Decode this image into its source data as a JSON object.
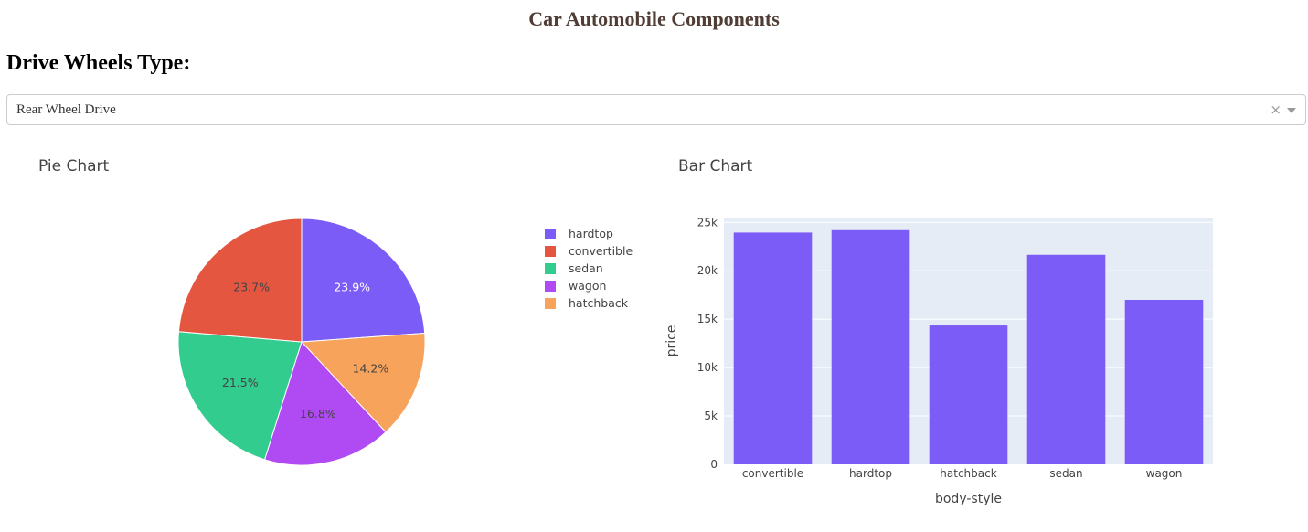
{
  "header": {
    "title": "Car Automobile Components"
  },
  "filter": {
    "heading": "Drive Wheels Type:",
    "selected": "Rear Wheel Drive",
    "clear_symbol": "×"
  },
  "chart_data": [
    {
      "type": "pie",
      "title": "Pie Chart",
      "labels": [
        "hardtop",
        "convertible",
        "sedan",
        "wagon",
        "hatchback"
      ],
      "values": [
        23.9,
        23.7,
        21.5,
        16.8,
        14.2
      ],
      "slice_order_clockwise": [
        "hardtop",
        "hatchback",
        "wagon",
        "sedan",
        "convertible"
      ],
      "value_labels": {
        "hardtop": "23.9%",
        "convertible": "23.7%",
        "sedan": "21.5%",
        "wagon": "16.8%",
        "hatchback": "14.2%"
      },
      "colors": {
        "hardtop": "#7b5cf6",
        "convertible": "#e45640",
        "sedan": "#33cc8f",
        "wagon": "#b04af2",
        "hatchback": "#f7a35c"
      },
      "legend_position": "right"
    },
    {
      "type": "bar",
      "title": "Bar Chart",
      "categories": [
        "convertible",
        "hardtop",
        "hatchback",
        "sedan",
        "wagon"
      ],
      "values": [
        23950,
        24200,
        14350,
        21650,
        17000
      ],
      "xlabel": "body-style",
      "ylabel": "price",
      "ylim": [
        0,
        25500
      ],
      "yticks": [
        0,
        5000,
        10000,
        15000,
        20000,
        25000
      ],
      "ytick_labels": [
        "0",
        "5k",
        "10k",
        "15k",
        "20k",
        "25k"
      ],
      "bar_color": "#7b5cf6",
      "plot_bg": "#e5ecf6",
      "grid": true
    }
  ]
}
